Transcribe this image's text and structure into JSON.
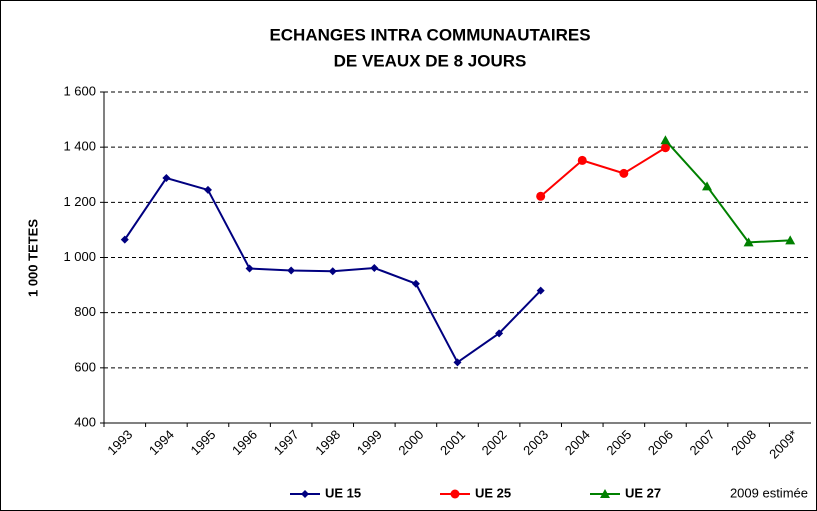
{
  "chart_data": {
    "type": "line",
    "title": [
      "ECHANGES INTRA COMMUNAUTAIRES",
      "DE VEAUX DE 8 JOURS"
    ],
    "ylabel": "1 000 TETES",
    "note": "2009 estimée",
    "categories": [
      "1993",
      "1994",
      "1995",
      "1996",
      "1997",
      "1998",
      "1999",
      "2000",
      "2001",
      "2002",
      "2003",
      "2004",
      "2005",
      "2006",
      "2007",
      "2008",
      "2009*"
    ],
    "series": [
      {
        "name": "UE 15",
        "color": "#000080",
        "marker": "diamond",
        "values": [
          1065,
          1288,
          1245,
          960,
          953,
          950,
          962,
          905,
          620,
          725,
          880,
          null,
          null,
          null,
          null,
          null,
          null
        ]
      },
      {
        "name": "UE 25",
        "color": "#ff0000",
        "marker": "circle",
        "values": [
          null,
          null,
          null,
          null,
          null,
          null,
          null,
          null,
          null,
          null,
          1222,
          1352,
          1305,
          1398,
          null,
          null,
          null
        ]
      },
      {
        "name": "UE 27",
        "color": "#008000",
        "marker": "triangle",
        "values": [
          null,
          null,
          null,
          null,
          null,
          null,
          null,
          null,
          null,
          null,
          null,
          null,
          null,
          1425,
          1258,
          1055,
          1062
        ]
      }
    ],
    "ylim": [
      400,
      1600
    ],
    "yticks": [
      400,
      600,
      800,
      {
        "value": 1000,
        "label": "1 000"
      },
      {
        "value": 1200,
        "label": "1 200"
      },
      {
        "value": 1400,
        "label": "1 400"
      },
      {
        "value": 1600,
        "label": "1 600"
      }
    ],
    "grid": true,
    "legend": "bottom"
  }
}
